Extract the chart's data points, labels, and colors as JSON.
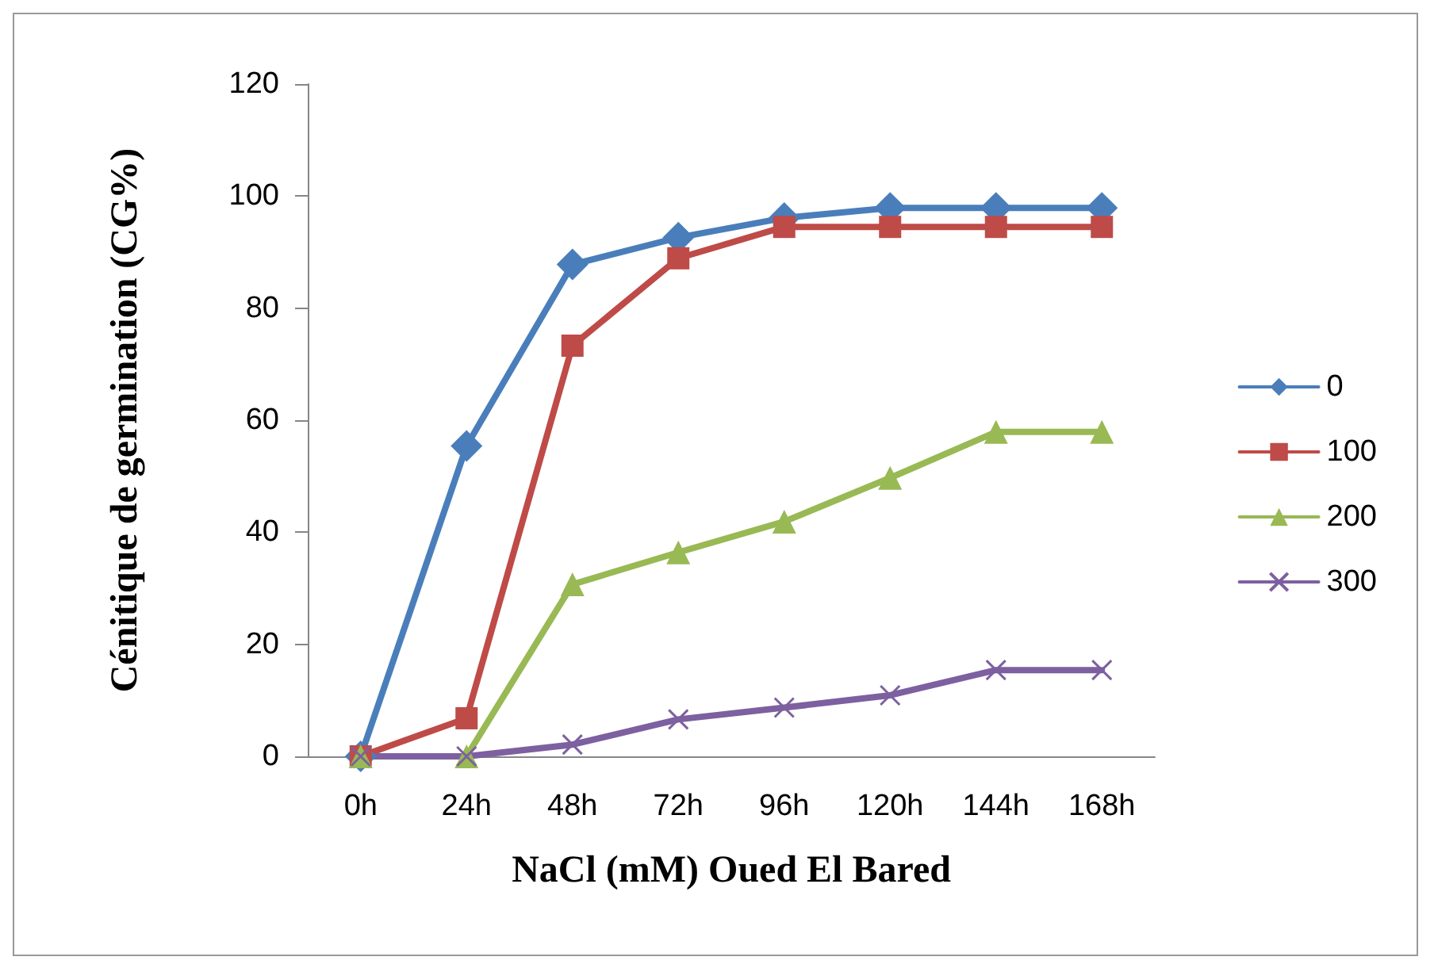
{
  "chart_data": {
    "type": "line",
    "xlabel": "NaCl (mM) Oued El Bared",
    "ylabel": "Cénitique de germination (CG%)",
    "categories": [
      "0h",
      "24h",
      "48h",
      "72h",
      "96h",
      "120h",
      "144h",
      "168h"
    ],
    "series": [
      {
        "name": "0",
        "color": "#4a7ebb",
        "marker": "diamond",
        "values": [
          0,
          55.4,
          87.8,
          92.6,
          96.1,
          97.9,
          97.9,
          97.9
        ]
      },
      {
        "name": "100",
        "color": "#be4b48",
        "marker": "square",
        "values": [
          0,
          6.8,
          73.3,
          88.9,
          94.5,
          94.5,
          94.5,
          94.5
        ]
      },
      {
        "name": "200",
        "color": "#98b954",
        "marker": "triangle",
        "values": [
          0,
          0,
          30.7,
          36.4,
          41.9,
          49.7,
          57.9,
          57.9
        ]
      },
      {
        "name": "300",
        "color": "#7d60a0",
        "marker": "cross",
        "values": [
          0,
          0,
          2.1,
          6.6,
          8.7,
          10.9,
          15.4,
          15.4
        ]
      }
    ],
    "ylim": [
      0,
      120
    ],
    "yticks": [
      0,
      20,
      40,
      60,
      80,
      100,
      120
    ],
    "grid": false,
    "legend": "right",
    "line_style": "solid"
  }
}
